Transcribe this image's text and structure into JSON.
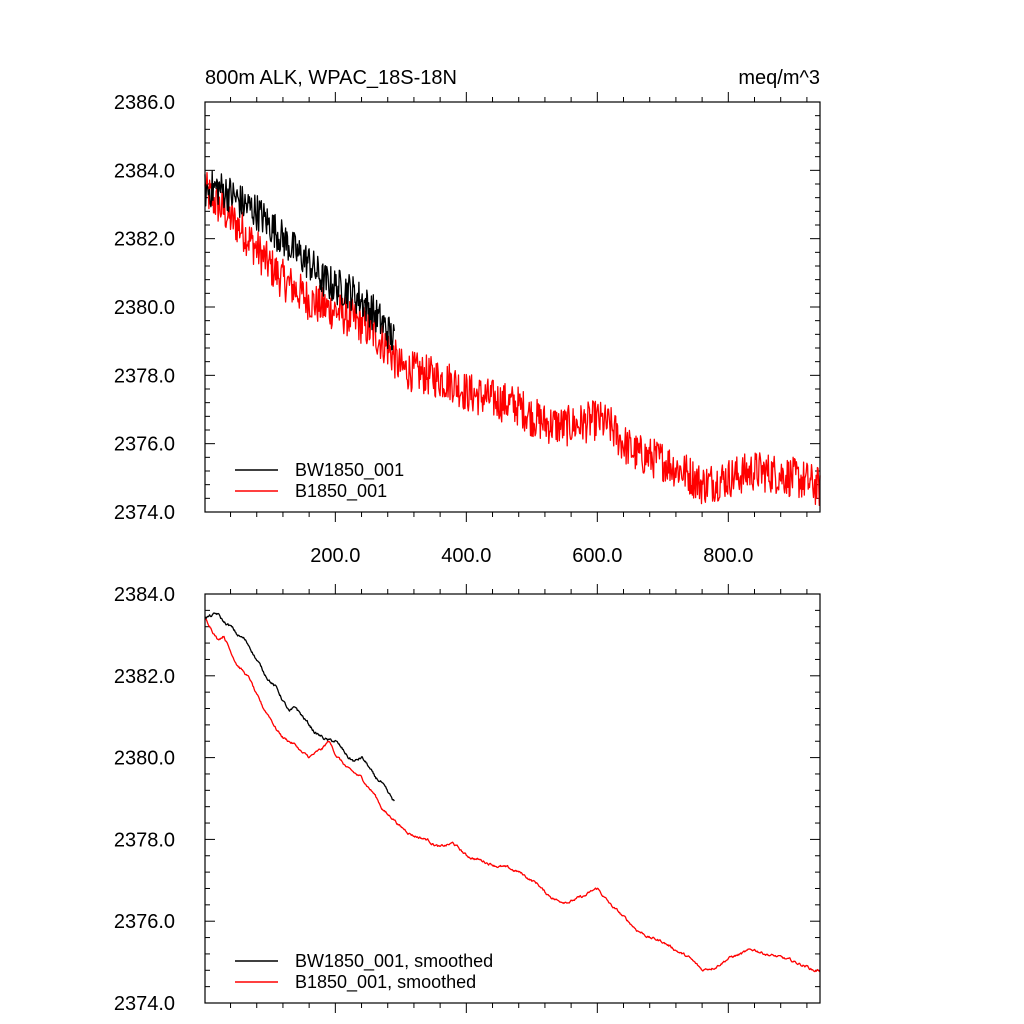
{
  "chart_data": [
    {
      "type": "line",
      "title": "800m ALK, WPAC_18S-18N",
      "units": "meq/m^3",
      "xlim": [
        1,
        940
      ],
      "ylim": [
        2374,
        2386
      ],
      "x_ticks": [
        200,
        400,
        600,
        800
      ],
      "x_tick_labels": [
        "200.0",
        "400.0",
        "600.0",
        "800.0"
      ],
      "y_ticks": [
        2374,
        2376,
        2378,
        2380,
        2382,
        2384,
        2386
      ],
      "y_tick_labels": [
        "2374.0",
        "2376.0",
        "2378.0",
        "2380.0",
        "2382.0",
        "2384.0",
        "2386.0"
      ],
      "legend_position": "bottom-left",
      "series": [
        {
          "name": "BW1850_001",
          "color": "#000000",
          "noise": 0.55,
          "x": [
            1,
            20,
            40,
            60,
            80,
            100,
            120,
            140,
            160,
            180,
            200,
            220,
            240,
            260,
            280,
            290
          ],
          "y": [
            2383.4,
            2383.5,
            2383.3,
            2383.0,
            2382.8,
            2382.4,
            2382.0,
            2381.6,
            2381.3,
            2380.8,
            2380.6,
            2380.5,
            2380.2,
            2379.8,
            2379.3,
            2379.0
          ]
        },
        {
          "name": "B1850_001",
          "color": "#ff0000",
          "noise": 0.6,
          "x": [
            1,
            20,
            40,
            60,
            80,
            100,
            120,
            140,
            160,
            180,
            200,
            220,
            240,
            260,
            280,
            290,
            300,
            340,
            380,
            400,
            440,
            480,
            500,
            520,
            550,
            580,
            600,
            620,
            640,
            660,
            700,
            740,
            760,
            800,
            840,
            880,
            920,
            940
          ],
          "y": [
            2383.4,
            2383.0,
            2382.6,
            2382.2,
            2381.7,
            2381.2,
            2380.8,
            2380.5,
            2380.2,
            2380.0,
            2379.9,
            2379.7,
            2379.5,
            2379.2,
            2378.8,
            2378.5,
            2378.2,
            2378.0,
            2377.8,
            2377.5,
            2377.3,
            2377.1,
            2376.8,
            2376.6,
            2376.5,
            2376.6,
            2376.7,
            2376.5,
            2376.0,
            2375.7,
            2375.5,
            2375.1,
            2374.8,
            2375.0,
            2375.2,
            2375.1,
            2374.9,
            2374.7
          ]
        }
      ]
    },
    {
      "type": "line",
      "title": "",
      "units": "",
      "xlim": [
        1,
        940
      ],
      "ylim": [
        2374,
        2384
      ],
      "x_ticks": [
        200,
        400,
        600,
        800
      ],
      "x_tick_labels": [],
      "y_ticks": [
        2374,
        2376,
        2378,
        2380,
        2382,
        2384
      ],
      "y_tick_labels": [
        "2374.0",
        "2376.0",
        "2378.0",
        "2380.0",
        "2382.0",
        "2384.0"
      ],
      "legend_position": "bottom-left",
      "series": [
        {
          "name": "BW1850_001, smoothed",
          "color": "#000000",
          "noise": 0.06,
          "x": [
            1,
            10,
            20,
            30,
            40,
            50,
            60,
            70,
            80,
            90,
            100,
            110,
            120,
            130,
            140,
            150,
            160,
            170,
            180,
            190,
            200,
            210,
            220,
            230,
            240,
            250,
            260,
            270,
            280,
            290
          ],
          "y": [
            2383.4,
            2383.45,
            2383.5,
            2383.3,
            2383.2,
            2383.0,
            2382.9,
            2382.7,
            2382.4,
            2382.1,
            2381.9,
            2381.7,
            2381.4,
            2381.1,
            2381.2,
            2381.0,
            2380.8,
            2380.6,
            2380.5,
            2380.4,
            2380.4,
            2380.2,
            2380.0,
            2379.9,
            2380.0,
            2379.8,
            2379.5,
            2379.4,
            2379.1,
            2378.9
          ]
        },
        {
          "name": "B1850_001, smoothed",
          "color": "#ff0000",
          "noise": 0.05,
          "x": [
            1,
            10,
            20,
            30,
            40,
            50,
            60,
            70,
            80,
            90,
            100,
            110,
            120,
            130,
            140,
            150,
            160,
            170,
            180,
            190,
            200,
            210,
            220,
            230,
            240,
            250,
            260,
            270,
            280,
            290,
            300,
            320,
            340,
            360,
            380,
            400,
            420,
            440,
            460,
            480,
            500,
            510,
            520,
            540,
            560,
            580,
            600,
            610,
            620,
            640,
            660,
            680,
            700,
            720,
            740,
            760,
            780,
            800,
            820,
            840,
            860,
            880,
            900,
            920,
            930,
            940
          ],
          "y": [
            2383.4,
            2383.2,
            2382.9,
            2383.0,
            2382.6,
            2382.3,
            2382.1,
            2381.9,
            2381.5,
            2381.2,
            2381.0,
            2380.7,
            2380.5,
            2380.4,
            2380.3,
            2380.1,
            2380.0,
            2380.1,
            2380.2,
            2380.4,
            2380.1,
            2379.9,
            2379.7,
            2379.6,
            2379.5,
            2379.3,
            2379.1,
            2378.8,
            2378.6,
            2378.5,
            2378.3,
            2378.1,
            2378.0,
            2377.8,
            2377.9,
            2377.6,
            2377.5,
            2377.4,
            2377.3,
            2377.2,
            2377.0,
            2376.9,
            2376.7,
            2376.5,
            2376.5,
            2376.6,
            2376.8,
            2376.6,
            2376.4,
            2376.1,
            2375.8,
            2375.6,
            2375.5,
            2375.3,
            2375.1,
            2374.8,
            2374.9,
            2375.1,
            2375.2,
            2375.3,
            2375.2,
            2375.1,
            2375.0,
            2374.9,
            2374.8,
            2374.8
          ]
        }
      ]
    }
  ]
}
